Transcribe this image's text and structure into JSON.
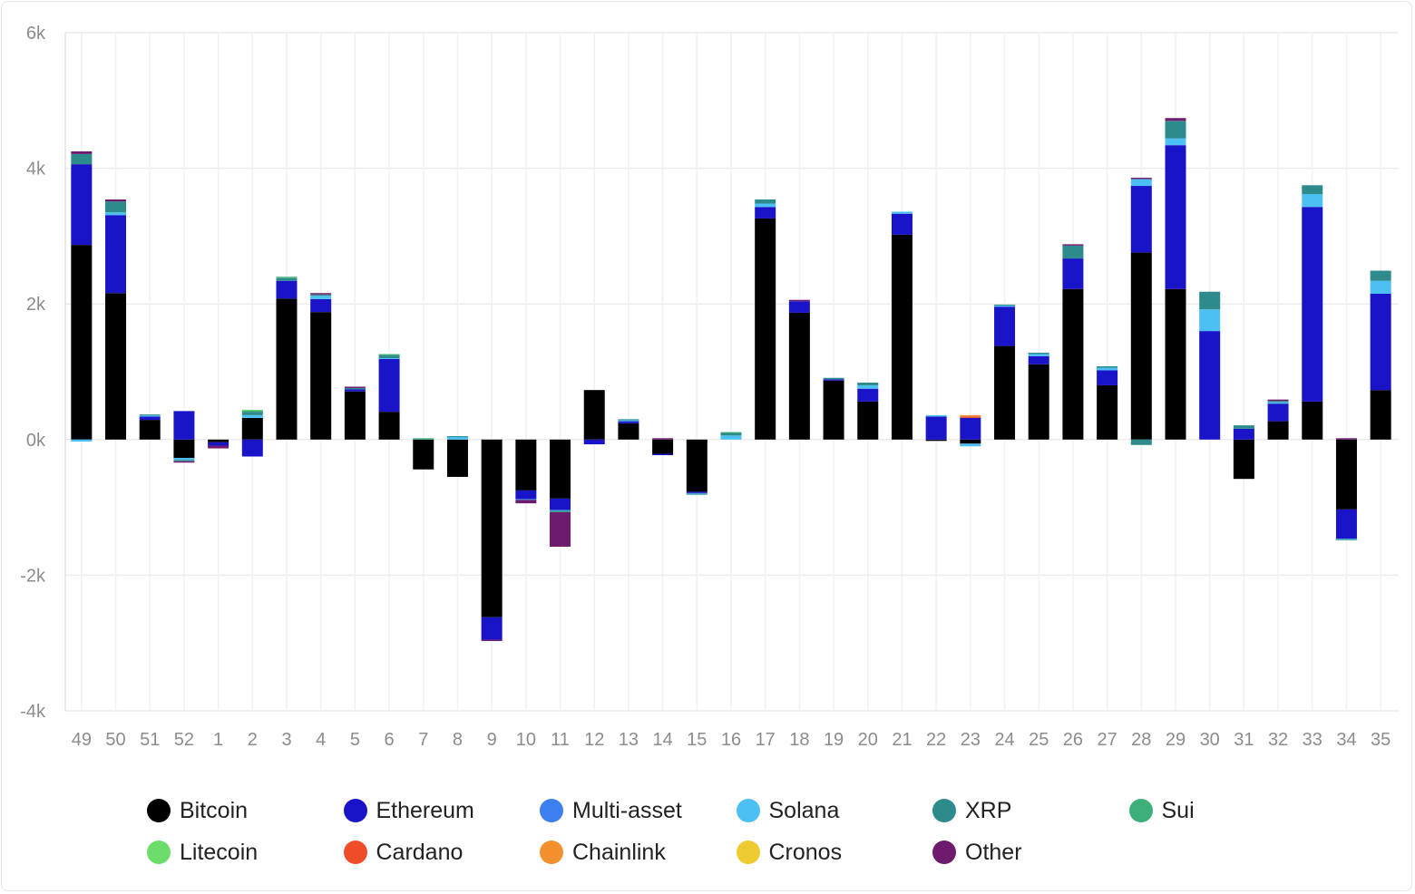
{
  "chart_data": {
    "type": "bar",
    "stacked": true,
    "title": "",
    "xlabel": "",
    "ylabel": "",
    "ylim": [
      -4000,
      6000
    ],
    "yticks": [
      6000,
      4000,
      2000,
      0,
      -2000,
      -4000
    ],
    "ytick_labels": [
      "6k",
      "4k",
      "2k",
      "0k",
      "-2k",
      "-4k"
    ],
    "grid": true,
    "legend_position": "bottom",
    "categories": [
      "49",
      "50",
      "51",
      "52",
      "1",
      "2",
      "3",
      "4",
      "5",
      "6",
      "7",
      "8",
      "9",
      "10",
      "11",
      "12",
      "13",
      "14",
      "15",
      "16",
      "17",
      "18",
      "19",
      "20",
      "21",
      "22",
      "23",
      "24",
      "25",
      "26",
      "27",
      "28",
      "29",
      "30",
      "31",
      "32",
      "33",
      "34",
      "35"
    ],
    "series": [
      {
        "name": "Bitcoin",
        "color": "#000000",
        "values": [
          2870,
          2160,
          290,
          -270,
          -40,
          320,
          2080,
          1880,
          710,
          410,
          -440,
          -550,
          -2620,
          -750,
          -870,
          730,
          240,
          -210,
          -770,
          0,
          3260,
          1870,
          870,
          560,
          3020,
          -20,
          -60,
          1380,
          1110,
          2220,
          800,
          2760,
          2220,
          0,
          -580,
          270,
          560,
          -1030,
          730
        ]
      },
      {
        "name": "Ethereum",
        "color": "#1a14c8",
        "values": [
          1190,
          1150,
          50,
          420,
          -50,
          -250,
          260,
          190,
          30,
          780,
          0,
          0,
          -330,
          -130,
          -170,
          -70,
          30,
          -20,
          -20,
          0,
          170,
          170,
          20,
          190,
          310,
          340,
          320,
          580,
          120,
          450,
          220,
          980,
          2120,
          1600,
          160,
          260,
          2870,
          -430,
          1420
        ]
      },
      {
        "name": "Multi-asset",
        "color": "#3d7ff0",
        "values": [
          0,
          0,
          0,
          0,
          0,
          0,
          0,
          0,
          0,
          0,
          0,
          0,
          0,
          0,
          0,
          0,
          0,
          0,
          0,
          0,
          0,
          0,
          0,
          0,
          0,
          0,
          0,
          0,
          0,
          0,
          0,
          0,
          0,
          0,
          0,
          0,
          0,
          0,
          0
        ]
      },
      {
        "name": "Solana",
        "color": "#4cc0f2",
        "values": [
          -30,
          40,
          20,
          -30,
          0,
          40,
          0,
          50,
          0,
          10,
          0,
          40,
          0,
          -10,
          -10,
          0,
          20,
          0,
          -10,
          60,
          50,
          0,
          0,
          50,
          30,
          20,
          -40,
          20,
          30,
          0,
          40,
          100,
          100,
          320,
          0,
          20,
          190,
          -10,
          190
        ]
      },
      {
        "name": "XRP",
        "color": "#2e8b8b",
        "values": [
          150,
          160,
          10,
          -20,
          0,
          50,
          40,
          20,
          20,
          40,
          0,
          10,
          0,
          0,
          -10,
          0,
          10,
          0,
          -10,
          40,
          60,
          0,
          20,
          40,
          0,
          0,
          0,
          10,
          20,
          190,
          20,
          -80,
          260,
          260,
          50,
          20,
          130,
          -10,
          150
        ]
      },
      {
        "name": "Sui",
        "color": "#3db07a",
        "values": [
          0,
          0,
          0,
          0,
          0,
          20,
          20,
          0,
          0,
          20,
          20,
          0,
          0,
          0,
          -10,
          0,
          0,
          0,
          0,
          10,
          0,
          0,
          0,
          0,
          0,
          0,
          0,
          0,
          0,
          0,
          0,
          0,
          0,
          0,
          0,
          0,
          0,
          0,
          0
        ]
      },
      {
        "name": "Litecoin",
        "color": "#6cdc6a",
        "values": [
          0,
          0,
          0,
          0,
          0,
          10,
          0,
          0,
          0,
          0,
          0,
          0,
          0,
          0,
          0,
          0,
          0,
          0,
          0,
          0,
          0,
          0,
          0,
          0,
          0,
          0,
          0,
          0,
          0,
          0,
          0,
          0,
          0,
          0,
          0,
          0,
          0,
          0,
          0
        ]
      },
      {
        "name": "Cardano",
        "color": "#ef4d2a",
        "values": [
          0,
          0,
          0,
          0,
          0,
          0,
          0,
          0,
          0,
          0,
          0,
          0,
          0,
          0,
          0,
          0,
          0,
          0,
          0,
          0,
          0,
          0,
          0,
          0,
          0,
          0,
          20,
          0,
          0,
          0,
          0,
          0,
          0,
          0,
          0,
          0,
          0,
          0,
          0
        ]
      },
      {
        "name": "Chainlink",
        "color": "#f2902e",
        "values": [
          0,
          0,
          0,
          0,
          0,
          0,
          0,
          0,
          0,
          0,
          0,
          0,
          0,
          0,
          0,
          0,
          0,
          0,
          0,
          0,
          0,
          0,
          0,
          0,
          0,
          0,
          20,
          0,
          0,
          0,
          0,
          0,
          0,
          0,
          0,
          0,
          0,
          0,
          0
        ]
      },
      {
        "name": "Cronos",
        "color": "#eecb30",
        "values": [
          0,
          0,
          0,
          0,
          0,
          0,
          0,
          0,
          0,
          0,
          0,
          0,
          0,
          0,
          0,
          0,
          0,
          0,
          0,
          0,
          0,
          0,
          0,
          0,
          0,
          0,
          0,
          0,
          0,
          0,
          0,
          0,
          0,
          0,
          0,
          0,
          0,
          0,
          0
        ]
      },
      {
        "name": "Other",
        "color": "#6e1a6e",
        "values": [
          40,
          30,
          0,
          -20,
          -40,
          0,
          0,
          20,
          20,
          0,
          0,
          0,
          -20,
          -50,
          -510,
          0,
          0,
          20,
          0,
          0,
          0,
          20,
          0,
          0,
          0,
          0,
          0,
          0,
          0,
          20,
          0,
          20,
          40,
          0,
          0,
          20,
          0,
          20,
          0
        ]
      }
    ]
  }
}
